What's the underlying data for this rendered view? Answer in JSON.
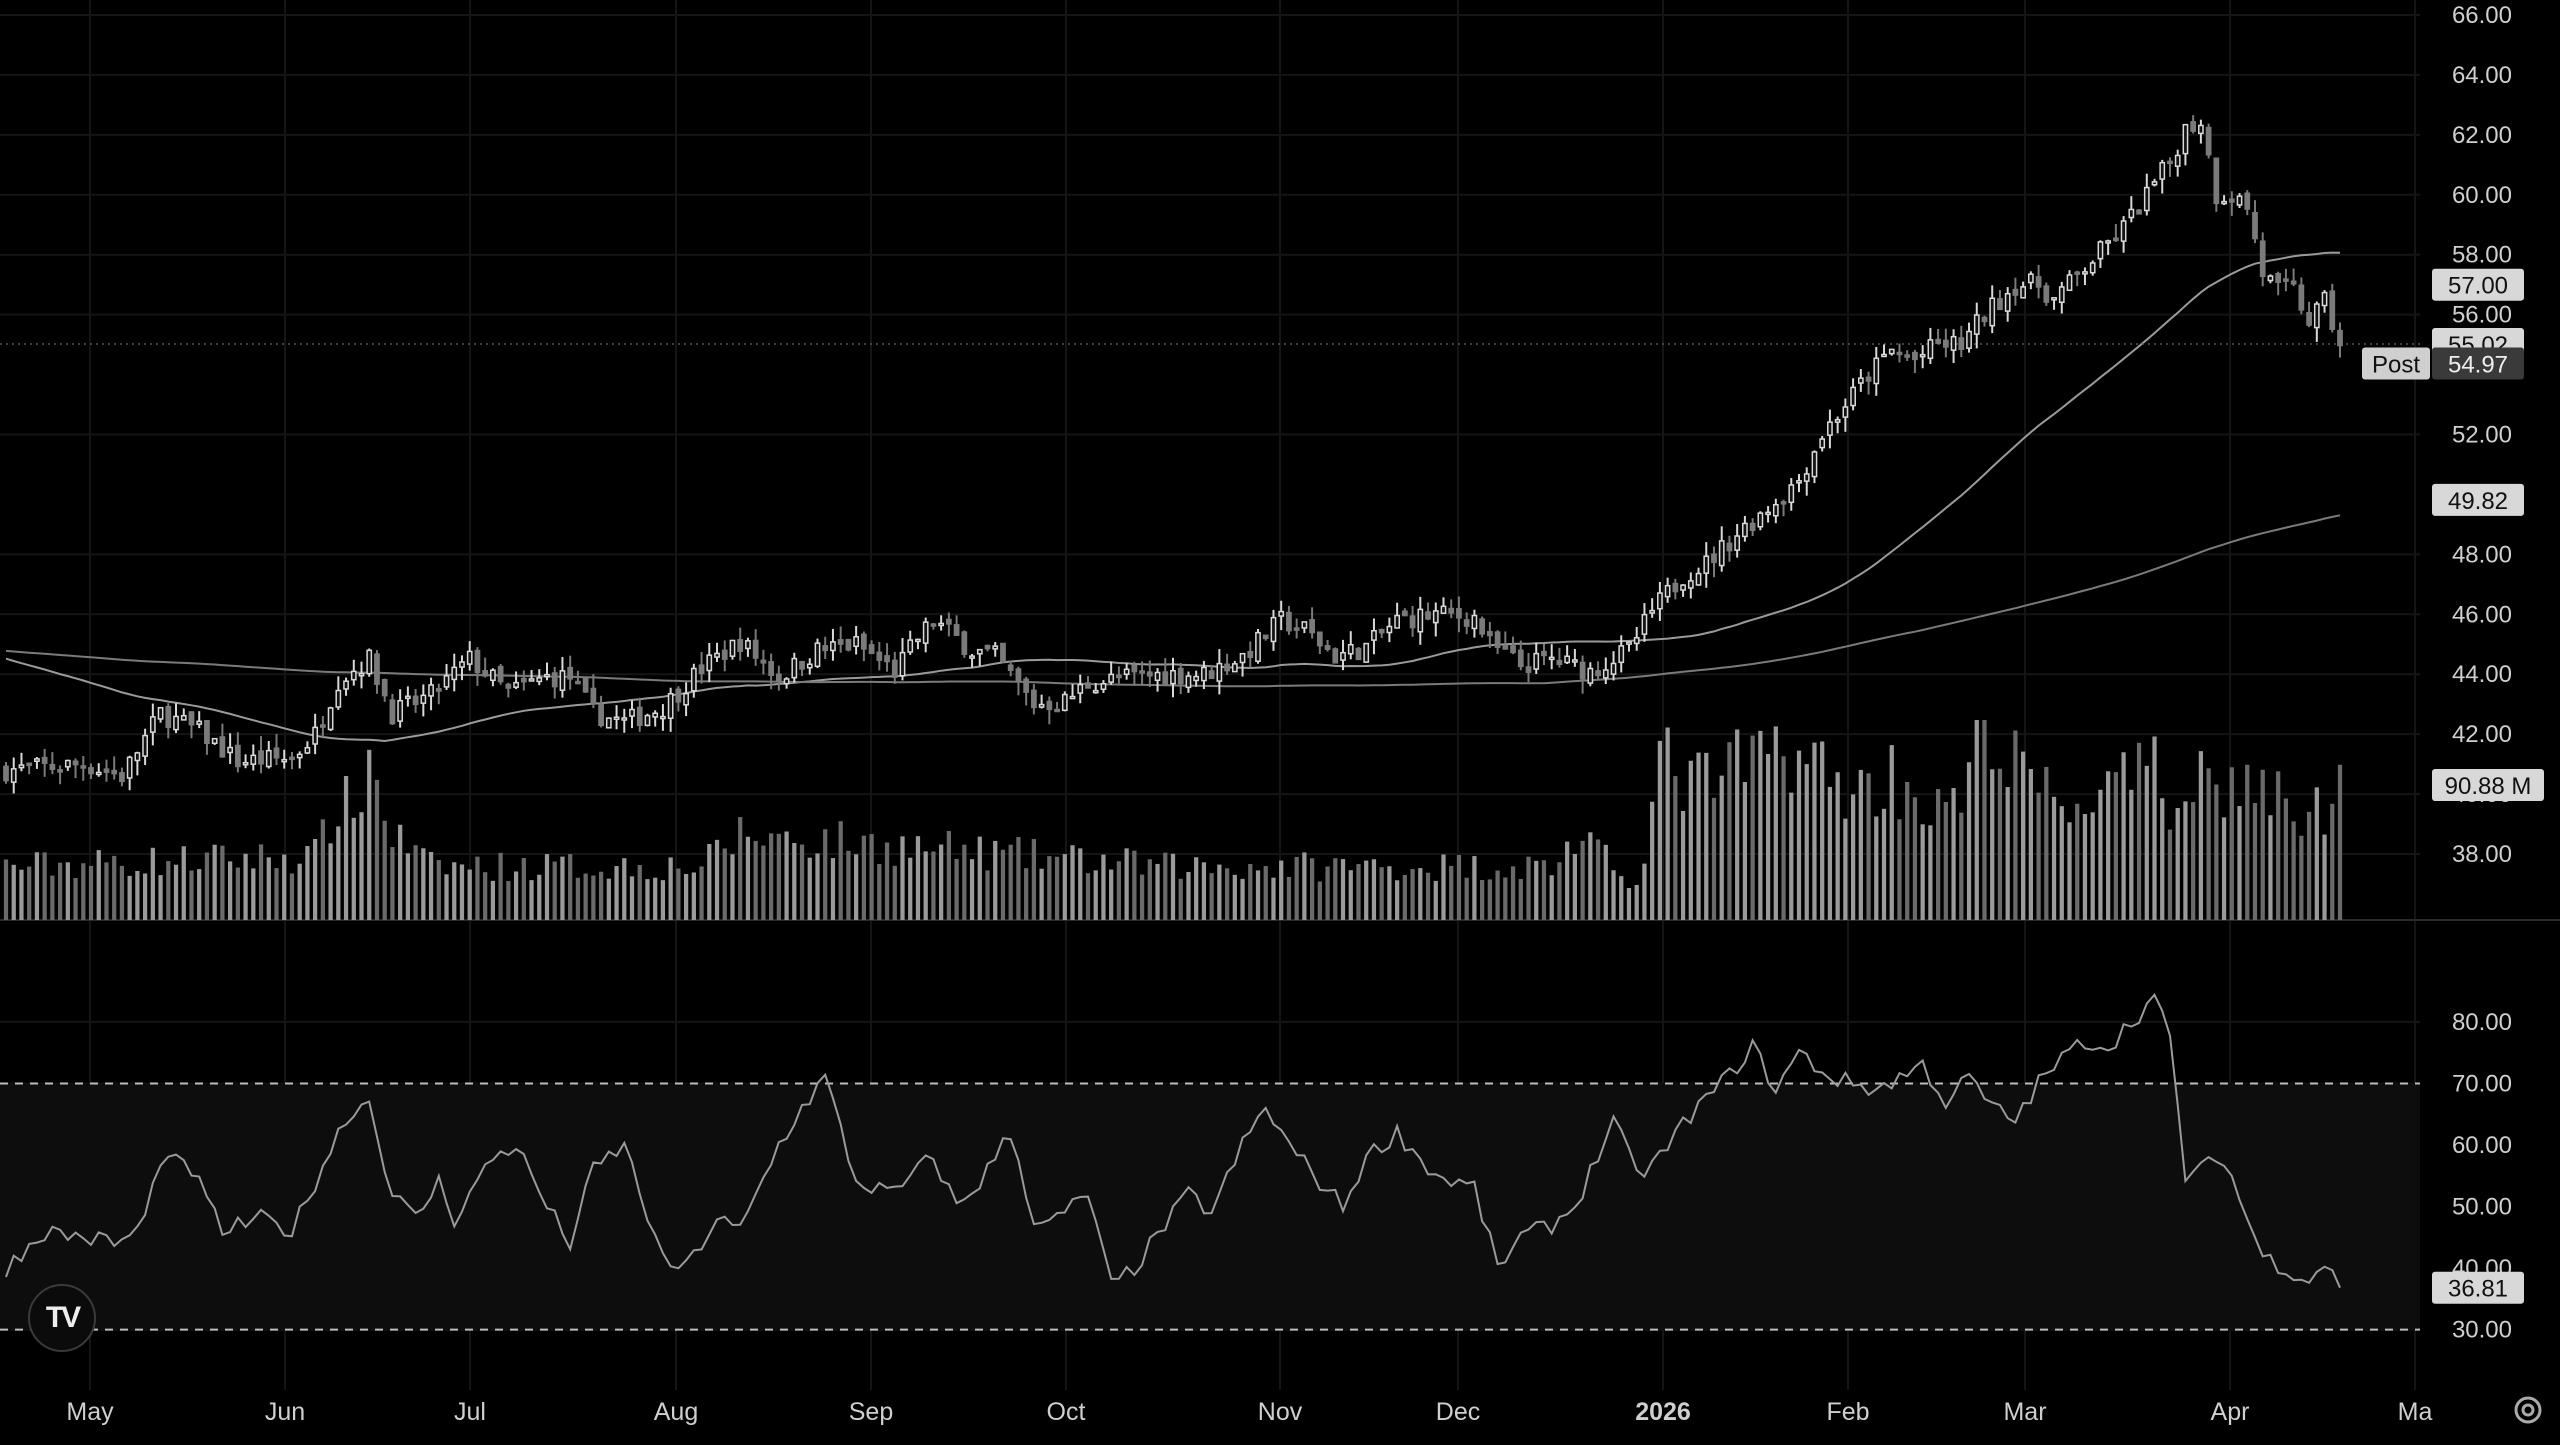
{
  "chart_data": [
    {
      "type": "candlestick",
      "title": "",
      "y_ticks": [
        "66.00",
        "64.00",
        "62.00",
        "60.00",
        "58.00",
        "56.00",
        "52.00",
        "48.00",
        "46.00",
        "44.00",
        "42.00",
        "40.00",
        "38.00"
      ],
      "ylim": [
        37,
        66
      ],
      "x_ticks": [
        "May",
        "Jun",
        "Jul",
        "Aug",
        "Sep",
        "Oct",
        "Nov",
        "Dec",
        "2026",
        "Feb",
        "Mar",
        "Apr",
        "Ma"
      ],
      "last_price": {
        "value": 55.02,
        "label": "55.02"
      },
      "post_price": {
        "value": 54.97,
        "label": "54.97",
        "tag": "Post"
      },
      "ma_short": {
        "value": 57.0,
        "label": "57.00"
      },
      "ma_long": {
        "value": 49.82,
        "label": "49.82"
      },
      "volume_label": "90.88 M",
      "anchors": [
        [
          0,
          40.8
        ],
        [
          10,
          41.0
        ],
        [
          15,
          40.6
        ],
        [
          20,
          42.7
        ],
        [
          25,
          42.1
        ],
        [
          30,
          41.1
        ],
        [
          37,
          41.2
        ],
        [
          40,
          42.0
        ],
        [
          43,
          43.8
        ],
        [
          47,
          44.5
        ],
        [
          50,
          42.7
        ],
        [
          55,
          43.3
        ],
        [
          60,
          44.5
        ],
        [
          65,
          43.4
        ],
        [
          70,
          43.9
        ],
        [
          73,
          43.9
        ],
        [
          76,
          42.7
        ],
        [
          80,
          42.4
        ],
        [
          85,
          42.9
        ],
        [
          90,
          44.2
        ],
        [
          95,
          45.1
        ],
        [
          100,
          43.9
        ],
        [
          105,
          44.8
        ],
        [
          110,
          45.0
        ],
        [
          115,
          44.1
        ],
        [
          118,
          45.2
        ],
        [
          120,
          45.8
        ],
        [
          125,
          44.8
        ],
        [
          128,
          44.6
        ],
        [
          133,
          43.0
        ],
        [
          137,
          43.1
        ],
        [
          140,
          43.7
        ],
        [
          145,
          43.9
        ],
        [
          150,
          44.0
        ],
        [
          155,
          44.0
        ],
        [
          160,
          44.6
        ],
        [
          165,
          45.8
        ],
        [
          168,
          45.5
        ],
        [
          172,
          44.6
        ],
        [
          176,
          44.9
        ],
        [
          180,
          45.8
        ],
        [
          185,
          46.0
        ],
        [
          190,
          45.9
        ],
        [
          192,
          45.0
        ],
        [
          196,
          44.3
        ],
        [
          200,
          44.5
        ],
        [
          205,
          44.1
        ],
        [
          210,
          44.8
        ],
        [
          213,
          46.1
        ],
        [
          217,
          47.3
        ],
        [
          220,
          47.7
        ],
        [
          224,
          48.7
        ],
        [
          230,
          50.0
        ],
        [
          232,
          50.5
        ],
        [
          235,
          52.0
        ],
        [
          238,
          53.0
        ],
        [
          241,
          54.0
        ],
        [
          244,
          54.8
        ],
        [
          247,
          54.5
        ],
        [
          250,
          55.0
        ],
        [
          253,
          55.0
        ],
        [
          256,
          56.0
        ],
        [
          260,
          57.0
        ],
        [
          263,
          57.0
        ],
        [
          265,
          56.5
        ],
        [
          268,
          57.3
        ],
        [
          271,
          58.1
        ],
        [
          274,
          58.9
        ],
        [
          277,
          60.0
        ],
        [
          280,
          61.1
        ],
        [
          282,
          62.2
        ],
        [
          284,
          62.5
        ],
        [
          286,
          60.0
        ],
        [
          288,
          60.0
        ],
        [
          290,
          59.6
        ],
        [
          292,
          57.4
        ],
        [
          294,
          56.8
        ],
        [
          296,
          56.8
        ],
        [
          298,
          55.8
        ],
        [
          300,
          56.4
        ],
        [
          302,
          54.97
        ]
      ],
      "volume_anchors": [
        [
          0,
          1
        ],
        [
          40,
          1.2
        ],
        [
          43,
          2.2
        ],
        [
          45,
          2.0
        ],
        [
          47,
          3.0
        ],
        [
          50,
          1.6
        ],
        [
          55,
          1.0
        ],
        [
          90,
          1.0
        ],
        [
          95,
          1.6
        ],
        [
          150,
          1.0
        ],
        [
          200,
          1.0
        ],
        [
          203,
          1.5
        ],
        [
          210,
          0.8
        ],
        [
          212,
          1.0
        ],
        [
          214,
          3.0
        ],
        [
          218,
          2.5
        ],
        [
          224,
          2.8
        ],
        [
          231,
          3.3
        ],
        [
          236,
          2.6
        ],
        [
          240,
          2.4
        ],
        [
          244,
          2.7
        ],
        [
          250,
          2.0
        ],
        [
          254,
          2.4
        ],
        [
          256,
          4.5
        ],
        [
          258,
          3.0
        ],
        [
          262,
          2.7
        ],
        [
          265,
          2.1
        ],
        [
          270,
          2.3
        ],
        [
          274,
          2.5
        ],
        [
          278,
          2.7
        ],
        [
          280,
          2.0
        ],
        [
          283,
          3.0
        ],
        [
          286,
          2.4
        ],
        [
          290,
          2.6
        ],
        [
          295,
          2.1
        ],
        [
          300,
          2.0
        ],
        [
          302,
          3.0
        ]
      ]
    },
    {
      "type": "line",
      "series": [
        {
          "name": "",
          "value_label": "36.81"
        }
      ],
      "y_ticks": [
        "80.00",
        "70.00",
        "60.00",
        "50.00",
        "40.00",
        "30.00"
      ],
      "ylim": [
        27.5,
        86
      ],
      "levels": [
        70,
        30
      ],
      "last_value": 36.81,
      "rsi_anchors": [
        [
          0,
          40
        ],
        [
          5,
          46
        ],
        [
          10,
          45
        ],
        [
          15,
          44
        ],
        [
          18,
          48
        ],
        [
          20,
          58
        ],
        [
          24,
          56
        ],
        [
          28,
          46
        ],
        [
          33,
          48
        ],
        [
          37,
          46
        ],
        [
          40,
          54
        ],
        [
          43,
          62
        ],
        [
          45,
          66
        ],
        [
          47,
          67
        ],
        [
          50,
          52
        ],
        [
          53,
          48
        ],
        [
          56,
          54
        ],
        [
          58,
          48
        ],
        [
          60,
          52
        ],
        [
          63,
          58
        ],
        [
          66,
          60
        ],
        [
          70,
          50
        ],
        [
          73,
          44
        ],
        [
          76,
          56
        ],
        [
          80,
          60
        ],
        [
          85,
          41
        ],
        [
          88,
          40
        ],
        [
          92,
          48
        ],
        [
          95,
          46
        ],
        [
          100,
          60
        ],
        [
          103,
          66
        ],
        [
          106,
          71
        ],
        [
          110,
          54
        ],
        [
          115,
          52
        ],
        [
          118,
          56
        ],
        [
          120,
          58
        ],
        [
          123,
          50
        ],
        [
          126,
          54
        ],
        [
          130,
          62
        ],
        [
          133,
          48
        ],
        [
          135,
          47
        ],
        [
          140,
          52
        ],
        [
          143,
          37
        ],
        [
          146,
          40
        ],
        [
          150,
          47
        ],
        [
          153,
          52
        ],
        [
          156,
          49
        ],
        [
          160,
          60
        ],
        [
          163,
          66
        ],
        [
          166,
          60
        ],
        [
          170,
          54
        ],
        [
          173,
          50
        ],
        [
          176,
          58
        ],
        [
          180,
          62
        ],
        [
          185,
          55
        ],
        [
          190,
          53
        ],
        [
          193,
          40
        ],
        [
          196,
          45
        ],
        [
          200,
          47
        ],
        [
          203,
          50
        ],
        [
          208,
          64
        ],
        [
          211,
          55
        ],
        [
          214,
          58
        ],
        [
          218,
          65
        ],
        [
          222,
          70
        ],
        [
          226,
          76
        ],
        [
          229,
          69
        ],
        [
          232,
          75
        ],
        [
          236,
          71
        ],
        [
          239,
          70
        ],
        [
          242,
          69
        ],
        [
          245,
          71
        ],
        [
          248,
          73
        ],
        [
          251,
          67
        ],
        [
          254,
          71
        ],
        [
          257,
          66
        ],
        [
          260,
          64
        ],
        [
          263,
          70
        ],
        [
          266,
          74
        ],
        [
          269,
          77
        ],
        [
          272,
          76
        ],
        [
          275,
          80
        ],
        [
          278,
          84
        ],
        [
          280,
          77
        ],
        [
          282,
          55
        ],
        [
          284,
          56
        ],
        [
          287,
          58
        ],
        [
          290,
          48
        ],
        [
          292,
          42
        ],
        [
          295,
          40
        ],
        [
          298,
          38
        ],
        [
          300,
          41
        ],
        [
          302,
          36.81
        ]
      ]
    }
  ],
  "icons": {
    "logo": "tradingview-logo-icon",
    "settings": "gear-icon"
  },
  "logo_text": "TV",
  "colors": {
    "background": "#000000",
    "line": "#9a9a9a",
    "candle_up": "#d9d9d9",
    "candle_down": "#7a7a7a",
    "volume": "#8a8a8a"
  }
}
